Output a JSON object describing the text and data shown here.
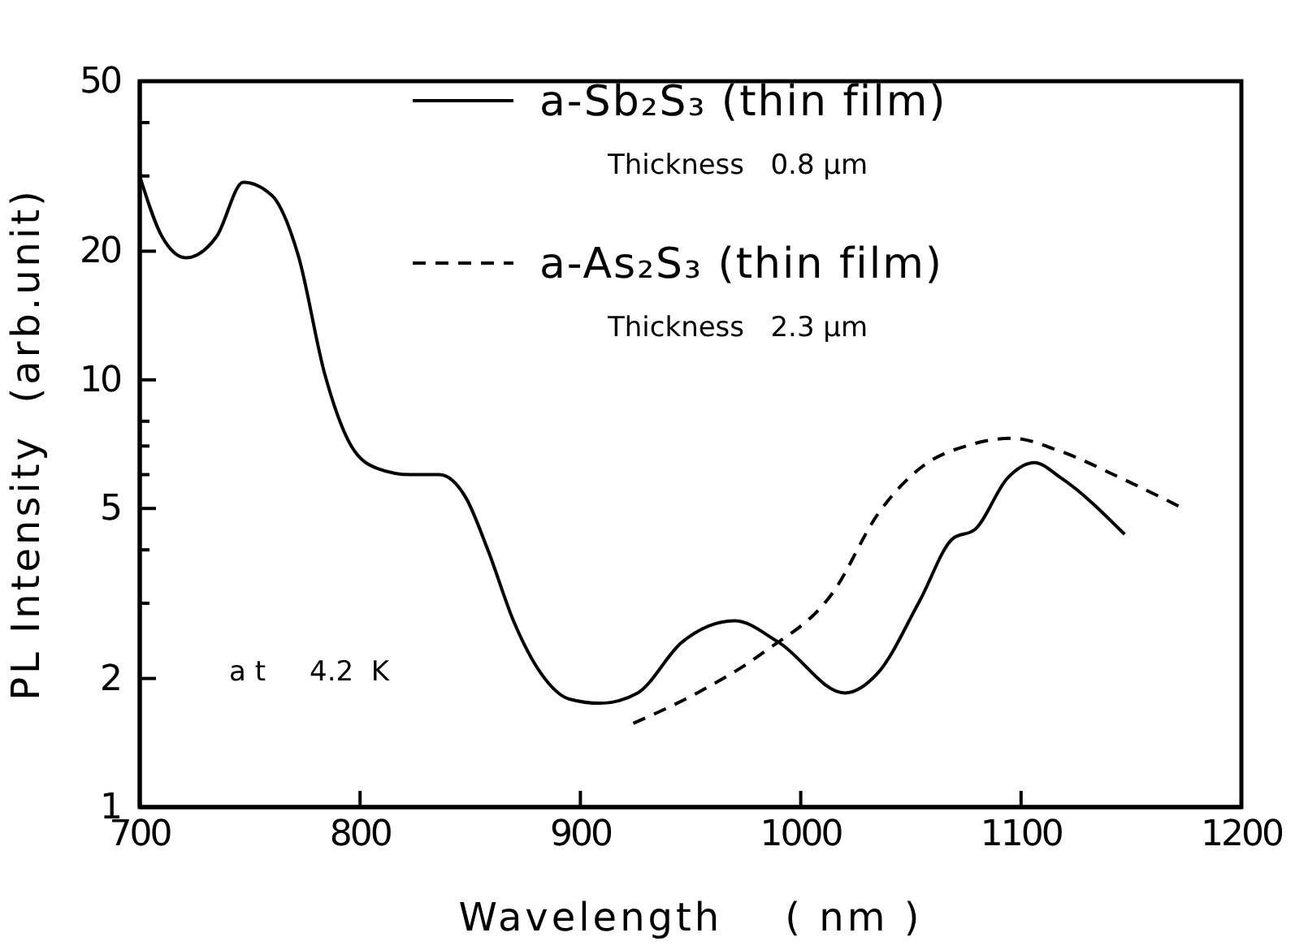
{
  "chart_data": {
    "type": "line",
    "xlabel": "Wavelength    ( nm )",
    "ylabel": "PL Intensity  (arb.unit)",
    "xlim": [
      700,
      1200
    ],
    "xticks": [
      700,
      800,
      900,
      1000,
      1100,
      1200
    ],
    "ylim": [
      1,
      50
    ],
    "yticks": [
      1,
      2,
      {
        "value": 3,
        "label": null
      },
      {
        "value": 4,
        "label": null
      },
      5,
      {
        "value": 6,
        "label": null
      },
      {
        "value": 7,
        "label": null
      },
      {
        "value": 8,
        "label": null
      },
      10,
      20,
      {
        "value": 30,
        "label": null
      },
      {
        "value": 40,
        "label": null
      },
      50
    ],
    "log": "y",
    "grid": false,
    "legend": "top right",
    "series": [
      {
        "name": "a-Sb₂S₃ (thin film)",
        "color": "#000000",
        "line_style": "solid",
        "x": [
          700,
          710,
          721,
          735,
          747,
          760,
          772,
          784,
          796,
          808,
          823,
          836,
          848,
          858,
          870,
          882,
          895,
          909,
          926,
          946,
          970,
          990,
          1020,
          1035,
          1054,
          1069,
          1079,
          1094,
          1106,
          1118,
          1147
        ],
        "values": [
          30,
          21.7,
          19.3,
          21.7,
          29,
          27,
          19.5,
          10.3,
          7,
          6.2,
          6.0,
          6.0,
          5.3,
          4.0,
          2.7,
          2.06,
          1.79,
          1.75,
          1.85,
          2.43,
          2.73,
          2.43,
          1.85,
          2.06,
          3.04,
          4.25,
          4.46,
          5.9,
          6.4,
          5.9,
          4.35
        ]
      },
      {
        "name": "a-As₂S₃ (thin film)",
        "color": "#000000",
        "line_style": "dashed",
        "x": [
          924,
          953,
          983,
          1015,
          1035,
          1054,
          1077,
          1096,
          1118,
          1145,
          1172
        ],
        "values": [
          1.57,
          1.85,
          2.3,
          3.2,
          4.85,
          6.2,
          7.05,
          7.3,
          6.8,
          5.9,
          5.05
        ]
      }
    ],
    "annotations": [
      "Thickness   0.8 μm",
      "Thickness   2.3 μm",
      "a t     4.2  K"
    ]
  }
}
